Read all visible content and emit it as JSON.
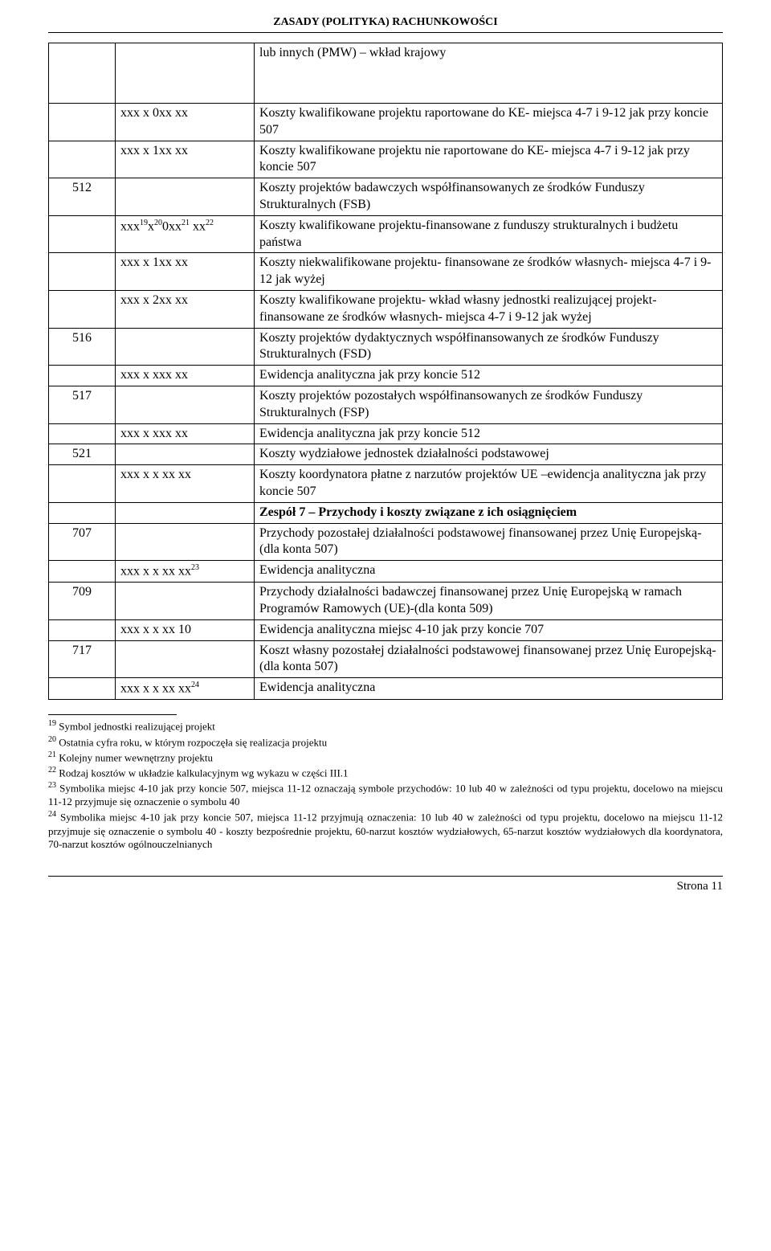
{
  "header": "ZASADY (POLITYKA) RACHUNKOWOŚCI",
  "rows": [
    {
      "c1": "",
      "c2": "",
      "c3": "lub innych (PMW) – wkład krajowy",
      "tall": true
    },
    {
      "c1": "",
      "c2": "xxx x 0xx xx",
      "c3": "Koszty kwalifikowane projektu raportowane do KE- miejsca 4-7 i 9-12 jak przy koncie 507"
    },
    {
      "c1": "",
      "c2": "xxx x 1xx xx",
      "c3": "Koszty kwalifikowane projektu nie raportowane do KE- miejsca 4-7 i 9-12 jak przy koncie 507"
    },
    {
      "c1": "512",
      "c2": "",
      "c3": "Koszty projektów badawczych współfinansowanych ze środków Funduszy Strukturalnych (FSB)"
    },
    {
      "c1": "",
      "c2html": "xxx<sup>19</sup>x<sup>20</sup>0xx<sup>21</sup> xx<sup>22</sup>",
      "c3": "Koszty kwalifikowane projektu-finansowane z funduszy strukturalnych i budżetu państwa"
    },
    {
      "c1": "",
      "c2": "xxx x 1xx xx",
      "c3": "Koszty niekwalifikowane projektu- finansowane ze środków własnych- miejsca 4-7 i 9-12 jak wyżej"
    },
    {
      "c1": "",
      "c2": "xxx x 2xx xx",
      "c3": "Koszty kwalifikowane projektu- wkład własny jednostki realizującej projekt- finansowane ze środków własnych- miejsca 4-7 i 9-12 jak wyżej"
    },
    {
      "c1": "516",
      "c2": "",
      "c3": "Koszty projektów dydaktycznych współfinansowanych ze środków Funduszy Strukturalnych (FSD)"
    },
    {
      "c1": "",
      "c2": "xxx x xxx xx",
      "c3": "Ewidencja analityczna jak przy koncie 512"
    },
    {
      "c1": "517",
      "c2": "",
      "c3": "Koszty projektów pozostałych współfinansowanych ze środków Funduszy Strukturalnych (FSP)"
    },
    {
      "c1": "",
      "c2": "xxx x xxx xx",
      "c3": "Ewidencja analityczna jak przy koncie 512"
    },
    {
      "c1": "521",
      "c2": "",
      "c3": "Koszty wydziałowe jednostek działalności podstawowej"
    },
    {
      "c1": "",
      "c2": "xxx x x xx xx",
      "c3": "Koszty koordynatora płatne z narzutów projektów UE –ewidencja analityczna jak przy koncie 507"
    },
    {
      "c1": "",
      "c2": "",
      "c3": "Zespół 7 – Przychody i koszty związane z ich osiągnięciem",
      "bold3": true
    },
    {
      "c1": "707",
      "c2": "",
      "c3": "Przychody pozostałej działalności podstawowej finansowanej przez Unię Europejską-(dla konta 507)"
    },
    {
      "c1": "",
      "c2html": "xxx x x xx xx<sup>23</sup>",
      "c3": "Ewidencja analityczna"
    },
    {
      "c1": "709",
      "c2": "",
      "c3": "Przychody działalności badawczej finansowanej przez Unię Europejską w ramach Programów Ramowych (UE)-(dla konta 509)"
    },
    {
      "c1": "",
      "c2": "xxx x x xx 10",
      "c3": "Ewidencja analityczna miejsc 4-10 jak przy koncie 707"
    },
    {
      "c1": "717",
      "c2": "",
      "c3": "Koszt własny pozostałej działalności podstawowej finansowanej przez Unię Europejską-(dla konta 507)"
    },
    {
      "c1": "",
      "c2html": "xxx x x xx xx<sup>24</sup>",
      "c3": "Ewidencja analityczna"
    }
  ],
  "footnotes": {
    "f19": "Symbol jednostki realizującej projekt",
    "f20": "Ostatnia cyfra roku, w którym rozpoczęła się realizacja projektu",
    "f21": "Kolejny numer wewnętrzny projektu",
    "f22": "Rodzaj kosztów w układzie kalkulacyjnym wg wykazu w części III.1",
    "f23": "Symbolika miejsc 4-10 jak przy koncie 507, miejsca 11-12 oznaczają symbole przychodów: 10 lub 40 w zależności od typu projektu, docelowo na miejscu 11-12 przyjmuje się oznaczenie o symbolu 40",
    "f24": "Symbolika miejsc 4-10 jak przy koncie 507, miejsca 11-12 przyjmują oznaczenia: 10 lub 40 w zależności od typu projektu, docelowo na miejscu 11-12 przyjmuje się oznaczenie o symbolu 40 - koszty bezpośrednie projektu, 60-narzut kosztów wydziałowych, 65-narzut kosztów wydziałowych dla koordynatora, 70-narzut kosztów ogólnouczelnianych"
  },
  "footer": "Strona 11"
}
